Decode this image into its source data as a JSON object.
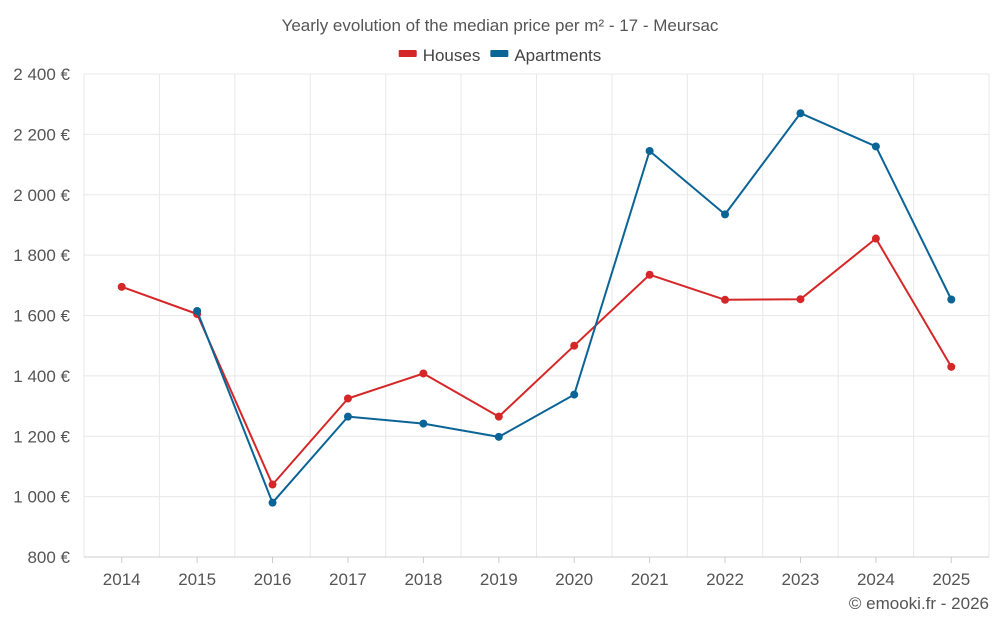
{
  "chart_data": {
    "type": "line",
    "title": "Yearly evolution of the median price per m² - 17 - Meursac",
    "xlabel": "",
    "ylabel": "",
    "categories": [
      "2014",
      "2015",
      "2016",
      "2017",
      "2018",
      "2019",
      "2020",
      "2021",
      "2022",
      "2023",
      "2024",
      "2025"
    ],
    "ylim": [
      800,
      2400
    ],
    "yticks": [
      800,
      1000,
      1200,
      1400,
      1600,
      1800,
      2000,
      2200,
      2400
    ],
    "ytick_labels": [
      "800 €",
      "1 000 €",
      "1 200 €",
      "1 400 €",
      "1 600 €",
      "1 800 €",
      "2 000 €",
      "2 200 €",
      "2 400 €"
    ],
    "grid": true,
    "legend_position": "top-center",
    "series": [
      {
        "name": "Houses",
        "color": "#d62728",
        "values": [
          1695,
          1605,
          1040,
          1325,
          1408,
          1265,
          1500,
          1735,
          1652,
          1654,
          1855,
          1430
        ]
      },
      {
        "name": "Apartments",
        "color": "#0b6496",
        "values": [
          null,
          1615,
          980,
          1265,
          1242,
          1198,
          1338,
          2145,
          1935,
          2270,
          2160,
          1653
        ]
      }
    ]
  },
  "credit": "© emooki.fr - 2026"
}
